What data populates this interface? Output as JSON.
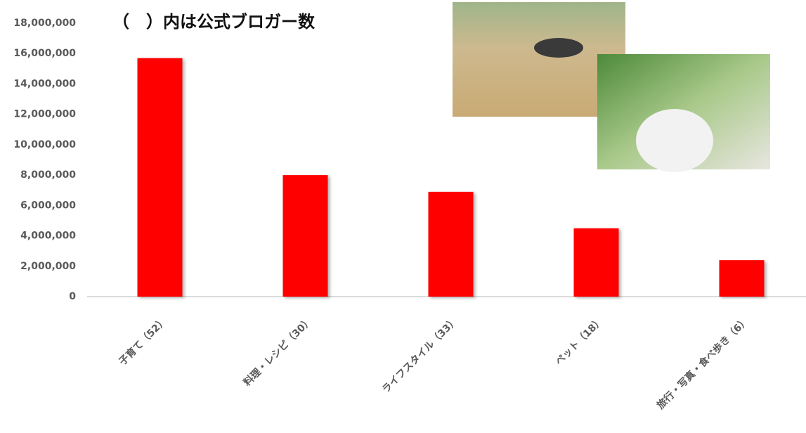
{
  "chart_data": {
    "type": "bar",
    "annotation": "（　）内は公式ブロガー数",
    "categories": [
      "子育て（52）",
      "料理・レシピ（30）",
      "ライフスタイル（33）",
      "ペット（18）",
      "旅行・写真・食べ歩き（6）"
    ],
    "values": [
      15700000,
      8000000,
      6900000,
      4500000,
      2400000
    ],
    "color": "#ff0000",
    "ylim": [
      0,
      18000000
    ],
    "yticks": [
      0,
      {
        "value": 2000000,
        "label": "2,000,000"
      },
      {
        "value": 4000000,
        "label": "4,000,000"
      },
      {
        "value": 6000000,
        "label": "6,000,000"
      },
      {
        "value": 8000000,
        "label": "8,000,000"
      },
      {
        "value": 10000000,
        "label": "10,000,000"
      },
      {
        "value": 12000000,
        "label": "12,000,000"
      },
      {
        "value": 14000000,
        "label": "14,000,000"
      },
      {
        "value": 16000000,
        "label": "16,000,000"
      },
      {
        "value": 18000000,
        "label": "18,000,000"
      }
    ],
    "grid": false
  }
}
